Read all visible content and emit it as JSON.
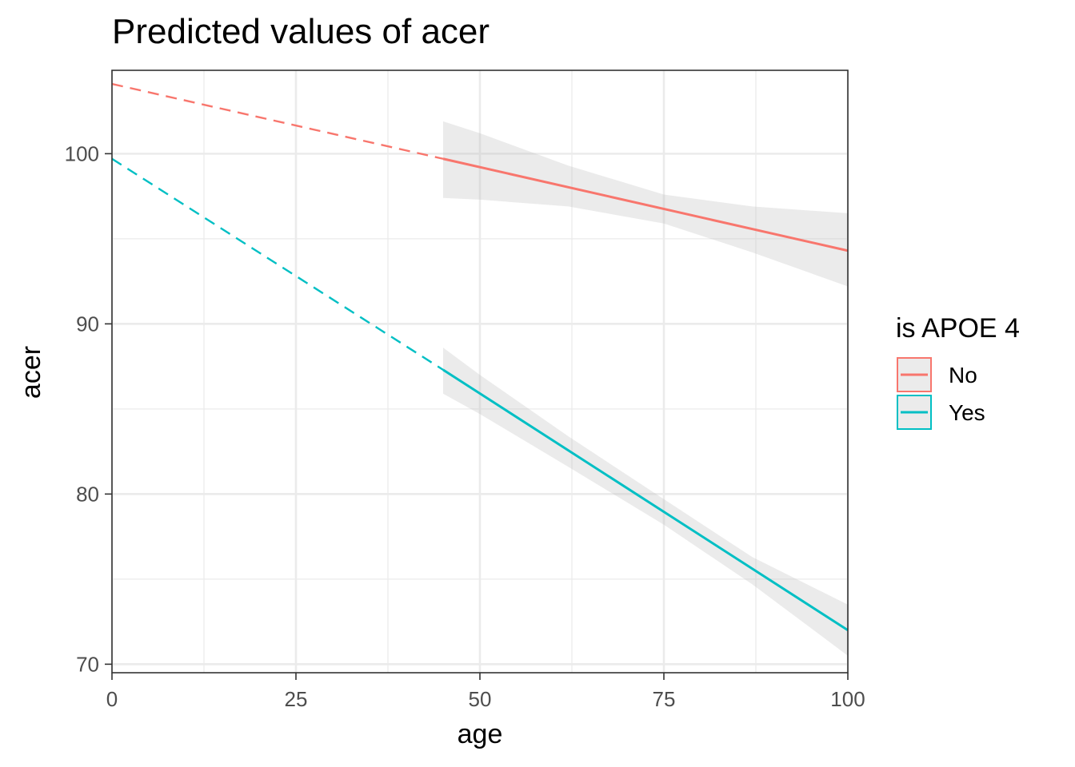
{
  "chart_data": {
    "type": "line",
    "title": "Predicted values of acer",
    "xlabel": "age",
    "ylabel": "acer",
    "xlim": [
      0,
      100
    ],
    "ylim": [
      69.5,
      104.9
    ],
    "x_ticks": [
      0,
      25,
      50,
      75,
      100
    ],
    "y_ticks": [
      70,
      80,
      90,
      100
    ],
    "grid": true,
    "legend": {
      "title": "is APOE 4",
      "placement": "right"
    },
    "series": [
      {
        "name": "No",
        "color": "#f8766d",
        "extrapolated": {
          "x": [
            0,
            45
          ],
          "y": [
            104.1,
            99.7
          ]
        },
        "fitted": {
          "x": [
            45,
            100
          ],
          "y": [
            99.7,
            94.3
          ]
        },
        "ci": {
          "x": [
            45,
            50,
            62,
            75,
            87,
            100
          ],
          "lower": [
            97.4,
            97.3,
            96.9,
            95.9,
            94.2,
            92.2
          ],
          "upper": [
            101.9,
            101.2,
            99.3,
            97.6,
            96.9,
            96.5
          ]
        }
      },
      {
        "name": "Yes",
        "color": "#00bfc4",
        "extrapolated": {
          "x": [
            0,
            45
          ],
          "y": [
            99.7,
            87.3
          ]
        },
        "fitted": {
          "x": [
            45,
            100
          ],
          "y": [
            87.3,
            72.0
          ]
        },
        "ci": {
          "x": [
            45,
            50,
            62,
            75,
            87,
            100
          ],
          "lower": [
            85.9,
            84.7,
            81.6,
            78.2,
            74.7,
            70.5
          ],
          "upper": [
            88.6,
            87.0,
            83.4,
            79.7,
            76.3,
            73.5
          ]
        }
      }
    ]
  }
}
